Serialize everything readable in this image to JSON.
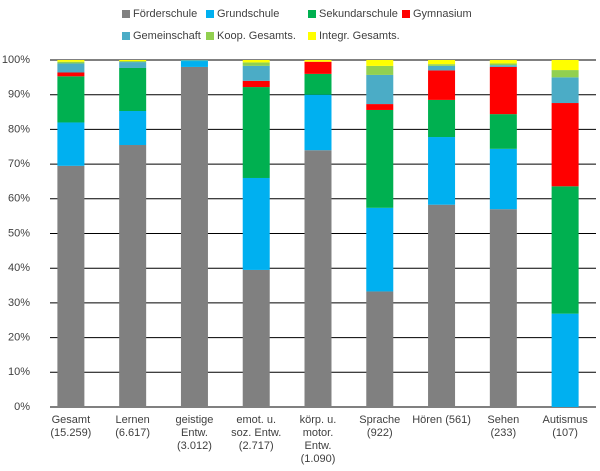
{
  "chart_data": {
    "type": "stacked_bar",
    "categories": [
      "Gesamt (15.259)",
      "Lernen (6.617)",
      "geistige Entw. (3.012)",
      "emot. u. soz. Entw. (2.717)",
      "körp. u. motor. Entw. (1.090)",
      "Sprache (922)",
      "Hören (561)",
      "Sehen (233)",
      "Autismus (107)"
    ],
    "series": [
      {
        "name": "Förderschule",
        "color": "#808080",
        "values": [
          69.5,
          75.5,
          98,
          39.5,
          74,
          33.3,
          58.3,
          57,
          0
        ]
      },
      {
        "name": "Grundschule",
        "color": "#00b0f0",
        "values": [
          12.5,
          9.8,
          1.7,
          26.5,
          16,
          24.1,
          19.5,
          17.4,
          26.9
        ]
      },
      {
        "name": "Sekundarschule",
        "color": "#00b050",
        "values": [
          13.3,
          12.4,
          0.1,
          26.2,
          6,
          28.2,
          10.7,
          10,
          36.7
        ]
      },
      {
        "name": "Gymnasium",
        "color": "#ff0000",
        "values": [
          1.1,
          0,
          0,
          1.8,
          3.5,
          1.7,
          8.5,
          13.6,
          24
        ]
      },
      {
        "name": "Gemeinschaft",
        "color": "#4bacc6",
        "values": [
          2.6,
          1.7,
          0.2,
          4.3,
          0,
          8.4,
          1.3,
          0.5,
          7.4
        ]
      },
      {
        "name": "Koop. Gesamts.",
        "color": "#92d050",
        "values": [
          0.5,
          0.3,
          0,
          1,
          0,
          2.6,
          0.5,
          0.5,
          2.1
        ]
      },
      {
        "name": "Integr. Gesamts.",
        "color": "#ffff00",
        "values": [
          0.5,
          0.3,
          0,
          0.7,
          0.5,
          1.7,
          1.2,
          1,
          2.9
        ]
      }
    ],
    "ylim": [
      0,
      100
    ],
    "yticks": [
      {
        "value": 0,
        "label": "0%"
      },
      {
        "value": 10,
        "label": "10%"
      },
      {
        "value": 20,
        "label": "20%"
      },
      {
        "value": 30,
        "label": "30%"
      },
      {
        "value": 40,
        "label": "40%"
      },
      {
        "value": 50,
        "label": "50%"
      },
      {
        "value": 60,
        "label": "60%"
      },
      {
        "value": 70,
        "label": "70%"
      },
      {
        "value": 80,
        "label": "80%"
      },
      {
        "value": 90,
        "label": "90%"
      },
      {
        "value": 100,
        "label": "100%"
      }
    ],
    "grid": true,
    "legend": "top"
  }
}
